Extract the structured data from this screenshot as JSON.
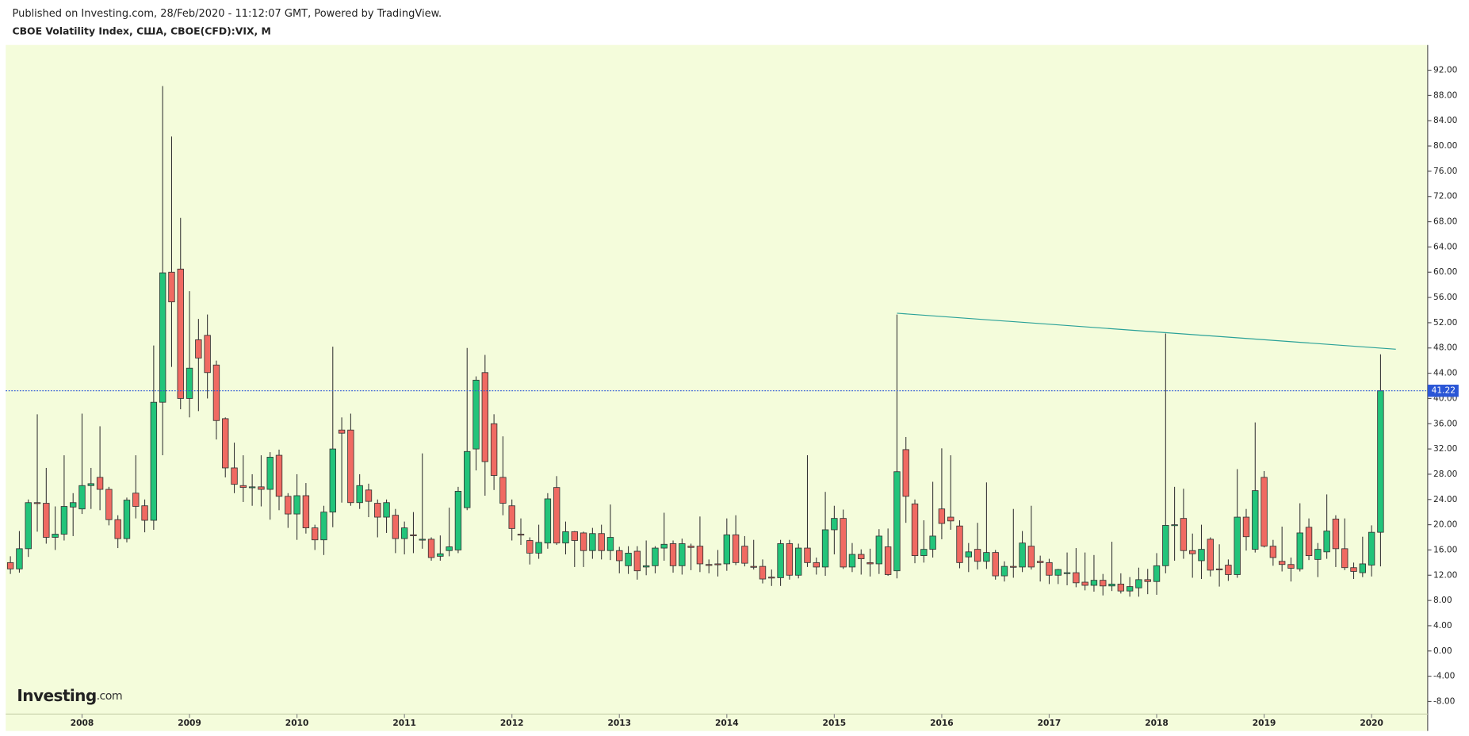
{
  "header": {
    "published": "Published on Investing.com, 28/Feb/2020 - 11:12:07 GMT, Powered by TradingView.",
    "symbol": "CBOE Volatility Index, США, CBOE(CFD):VIX, M"
  },
  "logo": {
    "name": "Investing",
    "suffix": ".com"
  },
  "chart_data": {
    "type": "candlestick",
    "categories": [
      null,
      null,
      null,
      null,
      null,
      null,
      null,
      null,
      "2008",
      null,
      null,
      null,
      null,
      null,
      null,
      null,
      null,
      null,
      null,
      null,
      "2009",
      null,
      null,
      null,
      null,
      null,
      null,
      null,
      null,
      null,
      null,
      null,
      "2010",
      null,
      null,
      null,
      null,
      null,
      null,
      null,
      null,
      null,
      null,
      null,
      "2011",
      null,
      null,
      null,
      null,
      null,
      null,
      null,
      null,
      null,
      null,
      null,
      "2012",
      null,
      null,
      null,
      null,
      null,
      null,
      null,
      null,
      null,
      null,
      null,
      "2013",
      null,
      null,
      null,
      null,
      null,
      null,
      null,
      null,
      null,
      null,
      null,
      "2014",
      null,
      null,
      null,
      null,
      null,
      null,
      null,
      null,
      null,
      null,
      null,
      "2015",
      null,
      null,
      null,
      null,
      null,
      null,
      null,
      null,
      null,
      null,
      null,
      "2016",
      null,
      null,
      null,
      null,
      null,
      null,
      null,
      null,
      null,
      null,
      null,
      "2017",
      null,
      null,
      null,
      null,
      null,
      null,
      null,
      null,
      null,
      null,
      null,
      "2018",
      null,
      null,
      null,
      null,
      null,
      null,
      null,
      null,
      null,
      null,
      null,
      "2019",
      null,
      null,
      null,
      null,
      null,
      null,
      null,
      null,
      null,
      null,
      null,
      "2020",
      null
    ],
    "open": [
      14,
      13,
      16.2,
      23.5,
      23.4,
      18,
      18.5,
      22.8,
      22.5,
      26.2,
      27.5,
      25.6,
      20.8,
      17.8,
      25,
      23,
      20.7,
      39.4,
      60,
      60.5,
      40,
      49.3,
      50,
      45.3,
      36.8,
      29,
      26.2,
      25.9,
      26,
      25.6,
      31,
      24.5,
      21.7,
      24.6,
      19.5,
      17.6,
      22,
      35,
      35,
      23.5,
      25.5,
      23.4,
      21.2,
      21.5,
      17.8,
      18.4,
      17.6,
      17.7,
      15,
      15.9,
      16,
      22.7,
      32,
      44.1,
      36,
      27.5,
      23,
      18.5,
      17.5,
      15.5,
      17.1,
      25.9,
      17.1,
      18.9,
      18.7,
      15.9,
      18.6,
      15.9,
      15.9,
      13.5,
      15.8,
      13.3,
      13.5,
      16.3,
      17,
      13.5,
      16.6,
      16.6,
      13.7,
      13.8,
      13.8,
      18.4,
      16.6,
      13.4,
      13.4,
      11.7,
      11.6,
      17,
      12,
      16.3,
      14,
      13.3,
      19.2,
      21,
      13.3,
      15.3,
      14,
      13.8,
      16.5,
      12.7,
      31.9,
      23.3,
      15.1,
      16.1,
      22.5,
      21.2,
      19.8,
      14.9,
      16.1,
      14.2,
      15.6,
      11.9,
      13.4,
      13.3,
      16.6,
      14.2,
      14,
      12,
      12.3,
      12.4,
      10.9,
      10.4,
      11.2,
      10.3,
      10.6,
      9.5,
      10,
      11.3,
      11,
      13.5,
      19.9,
      21,
      15.9,
      14.3,
      17.7,
      13,
      13.6,
      12.1,
      21.2,
      16.1,
      27.5,
      16.6,
      14.2,
      13.7,
      13,
      19.6,
      14.5,
      15.7,
      20.9,
      16.2,
      13.2,
      12.4,
      13.6,
      18.8
    ],
    "high": [
      15,
      19,
      24,
      37.5,
      29,
      22.9,
      31,
      25,
      37.6,
      29,
      35.6,
      26,
      21.5,
      24.3,
      31,
      24,
      48.4,
      89.5,
      81.5,
      68.6,
      57,
      52.6,
      53.3,
      46,
      37,
      33,
      31,
      28,
      31,
      31.5,
      31.9,
      25,
      28,
      26.6,
      20,
      23,
      48.2,
      37,
      37.6,
      28,
      26.5,
      24,
      24,
      22.5,
      20.5,
      22,
      31.3,
      18,
      18.3,
      22.7,
      26,
      48,
      43.5,
      46.9,
      37.5,
      34,
      24,
      21,
      18,
      20,
      25,
      27.7,
      20.5,
      19,
      18.9,
      19.5,
      20,
      23.2,
      16.5,
      16.6,
      16.6,
      17.5,
      16.6,
      21.9,
      17.5,
      17.8,
      17,
      21.3,
      14.5,
      16,
      21,
      21.5,
      18.2,
      17.6,
      14.5,
      12.9,
      17.6,
      17.6,
      17,
      31,
      14.8,
      25.2,
      23,
      22.4,
      17.1,
      16.1,
      16.2,
      19.3,
      19.4,
      53.3,
      33.9,
      24,
      20.7,
      26.8,
      32.1,
      31,
      20.7,
      17.1,
      20.3,
      26.7,
      16,
      14.2,
      22.5,
      19,
      23,
      15.1,
      14.6,
      13,
      15.6,
      16.3,
      15.6,
      15.2,
      12.2,
      17.3,
      12.3,
      11.7,
      13.2,
      13,
      15.5,
      50.3,
      26,
      25.7,
      18.6,
      20,
      18,
      16.9,
      14.5,
      28.8,
      22.5,
      36.2,
      28.5,
      17.6,
      19.7,
      14.8,
      23.4,
      21,
      17.1,
      24.8,
      21.5,
      21,
      14,
      18.1,
      19.9,
      47
    ],
    "low": [
      12.2,
      12.4,
      14.9,
      18.9,
      17,
      16,
      17.5,
      18.2,
      21.7,
      22.5,
      22.3,
      19.9,
      16.3,
      17.2,
      21,
      18.8,
      19.2,
      31,
      45,
      38.3,
      37,
      38,
      40,
      33.5,
      27.5,
      25,
      23.6,
      23,
      22.9,
      20.8,
      22.3,
      19.5,
      17.6,
      18.6,
      16,
      15.2,
      19.6,
      23.5,
      23,
      22.5,
      21.2,
      18,
      18.7,
      15.5,
      15.3,
      15.5,
      16.2,
      14.3,
      14.3,
      15,
      15.5,
      22.3,
      28.6,
      24.6,
      25.5,
      21.5,
      17.5,
      16.8,
      13.7,
      14.6,
      16.2,
      16.8,
      15.3,
      13.3,
      13.3,
      14.6,
      14.5,
      14.4,
      12.3,
      12.2,
      11.3,
      12,
      12.3,
      14.3,
      12.4,
      12.1,
      12.8,
      12.5,
      12.3,
      11.8,
      12.7,
      13.6,
      13.4,
      12.9,
      10.7,
      10.3,
      10.3,
      11.3,
      11.5,
      13.3,
      12.1,
      11.9,
      15.3,
      13,
      12.5,
      12.1,
      11.8,
      12.2,
      11.9,
      11.5,
      20.3,
      13.9,
      14,
      14.8,
      17.7,
      19.2,
      13.1,
      12.5,
      12.9,
      13,
      11.3,
      11,
      11.6,
      12.5,
      12.9,
      11,
      10.6,
      10.6,
      10.4,
      10.1,
      9.6,
      9.4,
      8.8,
      9.5,
      9.1,
      8.6,
      8.6,
      9,
      8.9,
      12.3,
      14.3,
      14.6,
      11.6,
      11.4,
      11.8,
      10.2,
      11.1,
      11.6,
      15.9,
      15.6,
      16.4,
      13.5,
      12.6,
      11,
      12.6,
      14.4,
      11.7,
      14.6,
      13.3,
      12.8,
      11.4,
      11.7,
      11.8,
      13.4
    ],
    "close": [
      13,
      16.2,
      23.5,
      23.4,
      18,
      18.5,
      22.9,
      23.5,
      26.2,
      26.5,
      25.6,
      20.8,
      17.8,
      23.9,
      22.9,
      20.7,
      39.4,
      59.9,
      55.3,
      40,
      44.8,
      46.4,
      44.1,
      36.5,
      29,
      26.4,
      25.9,
      26,
      25.6,
      30.7,
      24.5,
      21.7,
      24.6,
      19.5,
      17.6,
      22,
      32,
      34.5,
      23.5,
      26.2,
      23.7,
      21.2,
      23.5,
      17.8,
      19.5,
      18.3,
      17.7,
      14.8,
      15.4,
      16.5,
      25.3,
      31.6,
      42.9,
      30,
      27.8,
      23.4,
      19.4,
      18.4,
      15.5,
      17.2,
      24.1,
      17.1,
      18.9,
      17.5,
      15.9,
      18.6,
      15.9,
      18,
      14.3,
      15.5,
      12.7,
      13.5,
      16.3,
      16.9,
      13.5,
      17,
      16.4,
      13.8,
      13.6,
      13.7,
      18.4,
      14,
      13.9,
      13.3,
      11.4,
      11.6,
      17,
      12,
      16.3,
      14,
      13.3,
      19.2,
      21,
      13.3,
      15.3,
      14.6,
      13.8,
      18.2,
      12.1,
      28.4,
      24.5,
      15.1,
      16.1,
      18.2,
      20.2,
      20.6,
      14,
      15.7,
      14.2,
      15.6,
      11.9,
      13.4,
      13.3,
      17.1,
      13.3,
      14,
      12,
      12.9,
      12.4,
      10.8,
      10.4,
      11.2,
      10.3,
      10.6,
      9.5,
      10.2,
      11.3,
      11,
      13.5,
      19.9,
      20,
      15.9,
      15.4,
      16.1,
      12.8,
      12.9,
      12.1,
      21.2,
      18.1,
      25.4,
      16.6,
      14.8,
      13.7,
      13.1,
      18.7,
      15.1,
      16.1,
      19,
      16.2,
      13.2,
      12.6,
      13.8,
      18.8,
      41.22
    ],
    "up_color": "#22c47a",
    "down_color": "#f06a62",
    "last_price": 41.22,
    "trendline": [
      53.5,
      47.8
    ],
    "ylim": [
      -10,
      96
    ],
    "yticks": [
      {
        "value": 92,
        "label": "92.00"
      },
      {
        "value": 88,
        "label": "88.00"
      },
      {
        "value": 84,
        "label": "84.00"
      },
      {
        "value": 80,
        "label": "80.00"
      },
      {
        "value": 76,
        "label": "76.00"
      },
      {
        "value": 72,
        "label": "72.00"
      },
      {
        "value": 68,
        "label": "68.00"
      },
      {
        "value": 64,
        "label": "64.00"
      },
      {
        "value": 60,
        "label": "60.00"
      },
      {
        "value": 56,
        "label": "56.00"
      },
      {
        "value": 52,
        "label": "52.00"
      },
      {
        "value": 48,
        "label": "48.00"
      },
      {
        "value": 44,
        "label": "44.00"
      },
      {
        "value": 40,
        "label": "40.00"
      },
      {
        "value": 36,
        "label": "36.00"
      },
      {
        "value": 32,
        "label": "32.00"
      },
      {
        "value": 28,
        "label": "28.00"
      },
      {
        "value": 24,
        "label": "24.00"
      },
      {
        "value": 20,
        "label": "20.00"
      },
      {
        "value": 16,
        "label": "16.00"
      },
      {
        "value": 12,
        "label": "12.00"
      },
      {
        "value": 8,
        "label": "8.00"
      },
      {
        "value": 4,
        "label": "4.00"
      },
      {
        "value": 0,
        "label": "0.00"
      },
      {
        "value": -4,
        "label": "-4.00"
      },
      {
        "value": -8,
        "label": "-8.00"
      }
    ]
  }
}
